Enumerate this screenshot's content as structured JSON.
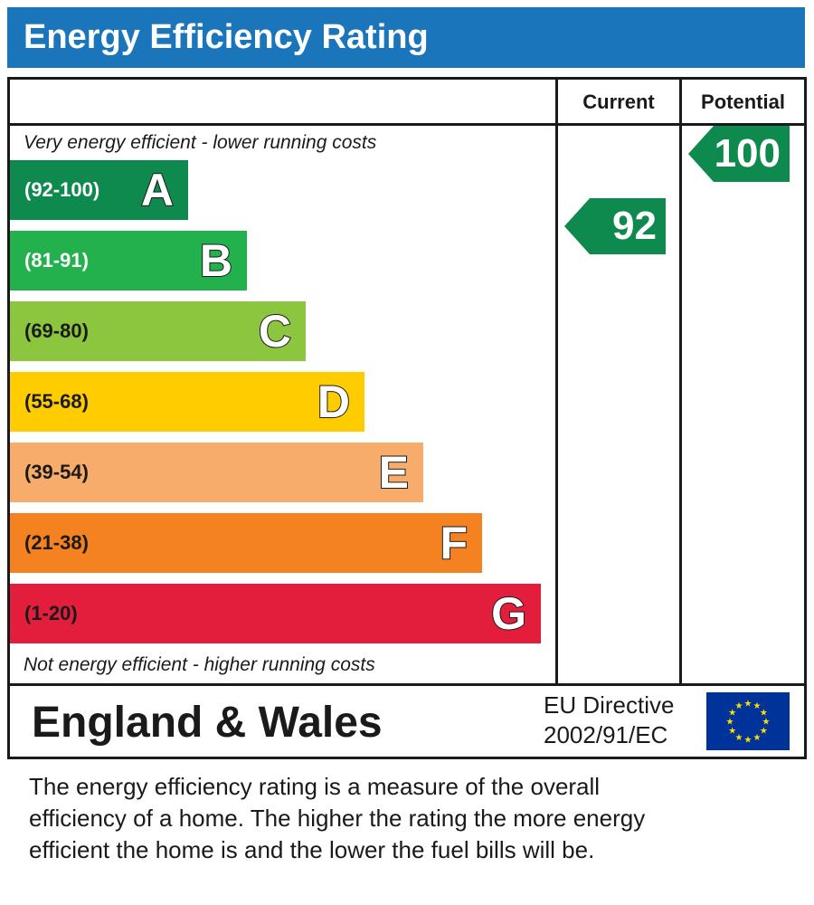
{
  "title": "Energy Efficiency Rating",
  "columns": {
    "current": "Current",
    "potential": "Potential"
  },
  "captions": {
    "top": "Very energy efficient - lower running costs",
    "bottom": "Not energy efficient - higher running costs"
  },
  "chart_data": {
    "type": "bar",
    "title": "Energy Efficiency Rating",
    "categories": [
      "A",
      "B",
      "C",
      "D",
      "E",
      "F",
      "G"
    ],
    "bands": [
      {
        "letter": "A",
        "range": "(92-100)",
        "min": 92,
        "max": 100,
        "color": "#0f8a4f",
        "label_color": "#ffffff"
      },
      {
        "letter": "B",
        "range": "(81-91)",
        "min": 81,
        "max": 91,
        "color": "#22b14c",
        "label_color": "#ffffff"
      },
      {
        "letter": "C",
        "range": "(69-80)",
        "min": 69,
        "max": 80,
        "color": "#8cc63f",
        "label_color": "#1a1a1a"
      },
      {
        "letter": "D",
        "range": "(55-68)",
        "min": 55,
        "max": 68,
        "color": "#ffcc00",
        "label_color": "#1a1a1a"
      },
      {
        "letter": "E",
        "range": "(39-54)",
        "min": 39,
        "max": 54,
        "color": "#f7ac6b",
        "label_color": "#1a1a1a"
      },
      {
        "letter": "F",
        "range": "(21-38)",
        "min": 21,
        "max": 38,
        "color": "#f58220",
        "label_color": "#1a1a1a"
      },
      {
        "letter": "G",
        "range": "(1-20)",
        "min": 1,
        "max": 20,
        "color": "#e31d3c",
        "label_color": "#1a1a1a"
      }
    ],
    "current": {
      "value": 92,
      "band": "A",
      "color": "#0f8a4f"
    },
    "potential": {
      "value": 100,
      "band": "A",
      "color": "#0f8a4f"
    }
  },
  "footer": {
    "region": "England & Wales",
    "directive_line1": "EU Directive",
    "directive_line2": "2002/91/EC",
    "flag_icon": "eu-flag-icon",
    "flag_color": "#003399",
    "star_color": "#ffdd00"
  },
  "description": [
    "The energy efficiency rating is a measure of the overall",
    "efficiency of a home.  The higher the rating the more energy",
    "efficient the home is and the lower the fuel bills will be."
  ],
  "colors": {
    "title_bar": "#1b75bb",
    "border": "#1a1a1a"
  }
}
